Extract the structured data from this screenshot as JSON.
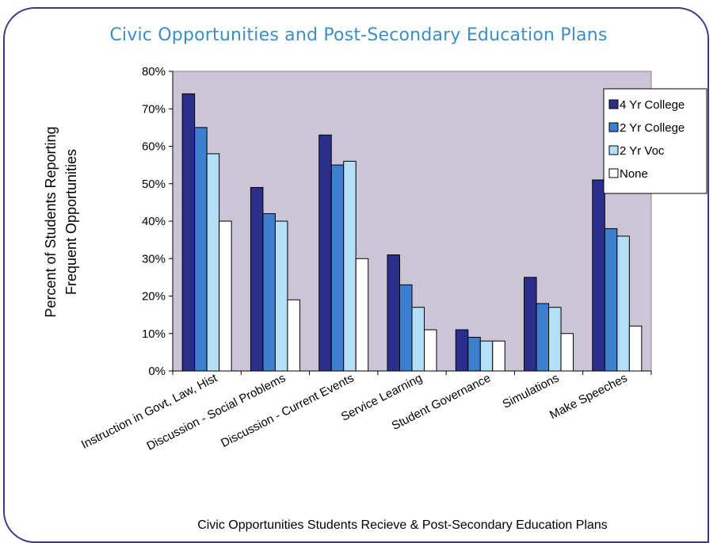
{
  "chart_data": {
    "type": "bar",
    "title": "Civic Opportunities and Post-Secondary Education Plans",
    "ylabel_line1": "Percent of Students Reporting",
    "ylabel_line2": "Frequent Opportunities",
    "xlabel": "Civic Opportunities Students Recieve & Post-Secondary Education Plans",
    "ylim": [
      0,
      80
    ],
    "yticks": [
      0,
      10,
      20,
      30,
      40,
      50,
      60,
      70,
      80
    ],
    "tick_suffix": "%",
    "categories": [
      "Instruction in Govt, Law, Hist",
      "Discussion - Social Problems",
      "Discussion - Current Events",
      "Service Learning",
      "Student Governance",
      "Simulations",
      "Make Speeches"
    ],
    "series": [
      {
        "name": "4 Yr College",
        "color": "#2b2f8c",
        "values": [
          74,
          49,
          63,
          31,
          11,
          25,
          51
        ]
      },
      {
        "name": "2 Yr College",
        "color": "#3d7fcf",
        "values": [
          65,
          42,
          55,
          23,
          9,
          18,
          38
        ]
      },
      {
        "name": "2 Yr Voc",
        "color": "#b3e0f7",
        "values": [
          58,
          40,
          56,
          17,
          8,
          17,
          36
        ]
      },
      {
        "name": "None",
        "color": "#ffffff",
        "values": [
          40,
          19,
          30,
          11,
          8,
          10,
          12
        ]
      }
    ],
    "legend_position": "right",
    "grid": false,
    "plot_background": "#cbc5d6"
  }
}
